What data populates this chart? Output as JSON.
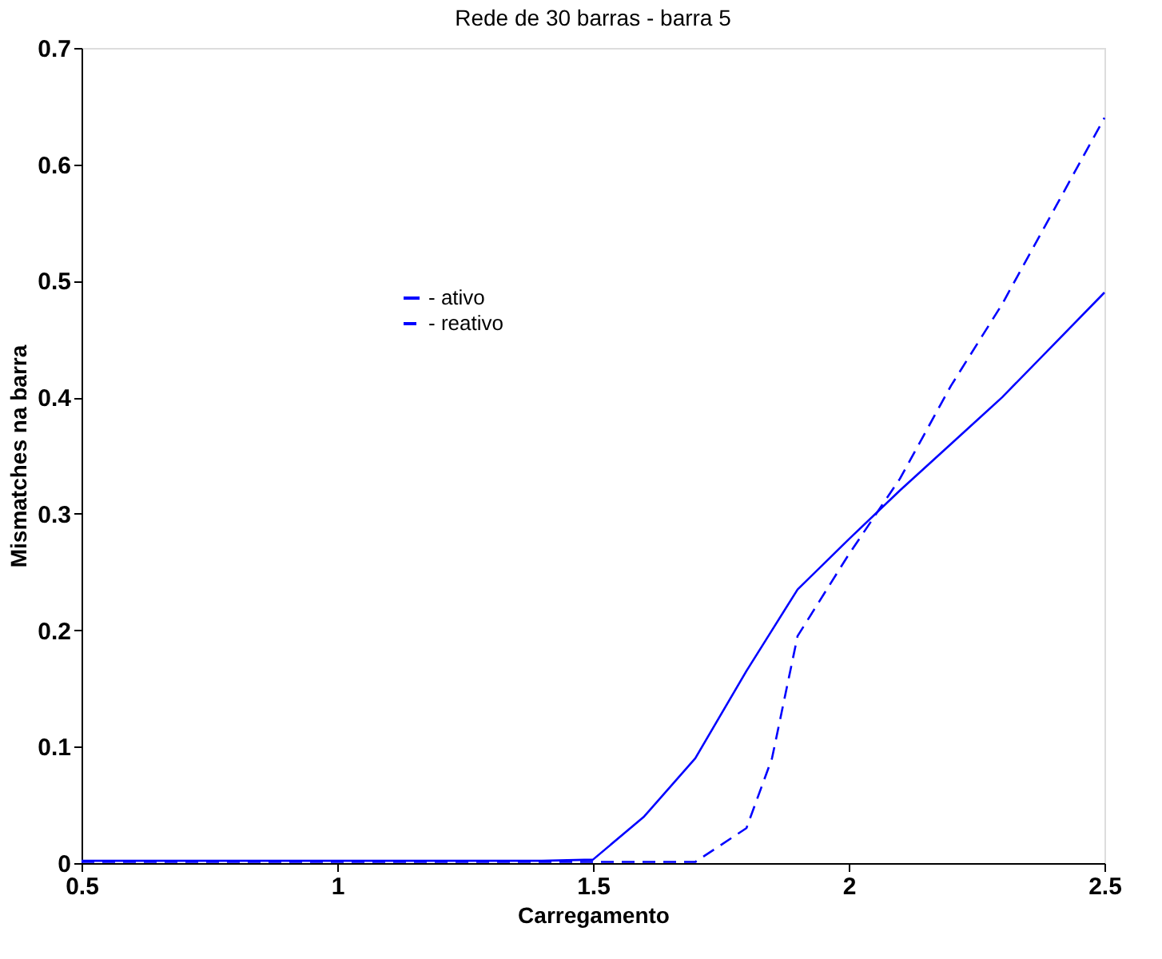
{
  "chart_data": {
    "type": "line",
    "title": "Rede de 30 barras - barra 5",
    "xlabel": "Carregamento",
    "ylabel": "Mismatches na barra",
    "x": [
      0.5,
      0.6,
      0.7,
      0.8,
      0.9,
      1.0,
      1.1,
      1.2,
      1.3,
      1.4,
      1.5,
      1.6,
      1.7,
      1.8,
      1.85,
      1.9,
      2.0,
      2.1,
      2.2,
      2.3,
      2.4,
      2.5
    ],
    "series": [
      {
        "name": "- ativo",
        "color": "#0000ff",
        "line_style": "solid",
        "values": [
          0.002,
          0.002,
          0.002,
          0.002,
          0.002,
          0.002,
          0.002,
          0.002,
          0.002,
          0.002,
          0.003,
          0.04,
          0.09,
          0.165,
          0.2,
          0.235,
          0.278,
          0.32,
          0.36,
          0.4,
          0.445,
          0.49
        ]
      },
      {
        "name": "- reativo",
        "color": "#0000ff",
        "line_style": "dashed",
        "values": [
          0.001,
          0.001,
          0.001,
          0.001,
          0.001,
          0.001,
          0.001,
          0.001,
          0.001,
          0.001,
          0.001,
          0.001,
          0.001,
          0.03,
          0.09,
          0.195,
          0.265,
          0.33,
          0.41,
          0.48,
          0.56,
          0.64
        ]
      }
    ],
    "xlim": [
      0.5,
      2.5
    ],
    "xticks": [
      0.5,
      1,
      1.5,
      2,
      2.5
    ],
    "ylim": [
      0,
      0.7
    ],
    "yticks": [
      0,
      0.1,
      0.2,
      0.3,
      0.4,
      0.5,
      0.6,
      0.7
    ],
    "grid": false,
    "legend": "center",
    "marker": "none"
  }
}
